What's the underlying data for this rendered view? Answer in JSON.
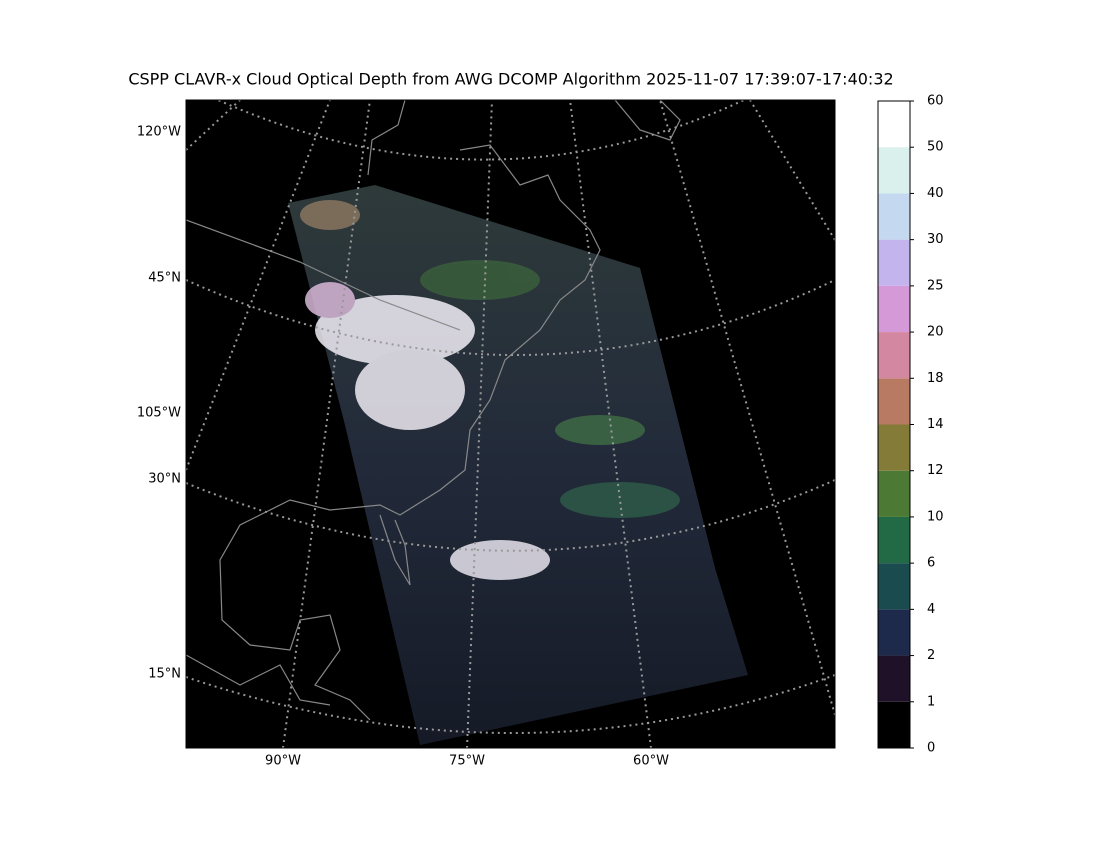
{
  "title": "CSPP CLAVR-x Cloud Optical Depth from AWG DCOMP Algorithm 2025-11-07 17:39:07-17:40:32",
  "map": {
    "left_labels": [
      "120°W",
      "45°N",
      "105°W",
      "30°N",
      "15°N"
    ],
    "bottom_labels": [
      "90°W",
      "75°W",
      "60°W"
    ]
  },
  "colorbar": {
    "ticks": [
      0,
      1,
      2,
      4,
      6,
      10,
      12,
      14,
      18,
      20,
      25,
      30,
      40,
      50,
      60
    ],
    "colors": [
      "#000000",
      "#1e1128",
      "#1e2a4b",
      "#1a4b4f",
      "#216a45",
      "#4c7a34",
      "#857b39",
      "#b97a63",
      "#d487a0",
      "#d499d6",
      "#c4b4ee",
      "#c4d8f0",
      "#daf0ec",
      "#ffffff"
    ]
  }
}
